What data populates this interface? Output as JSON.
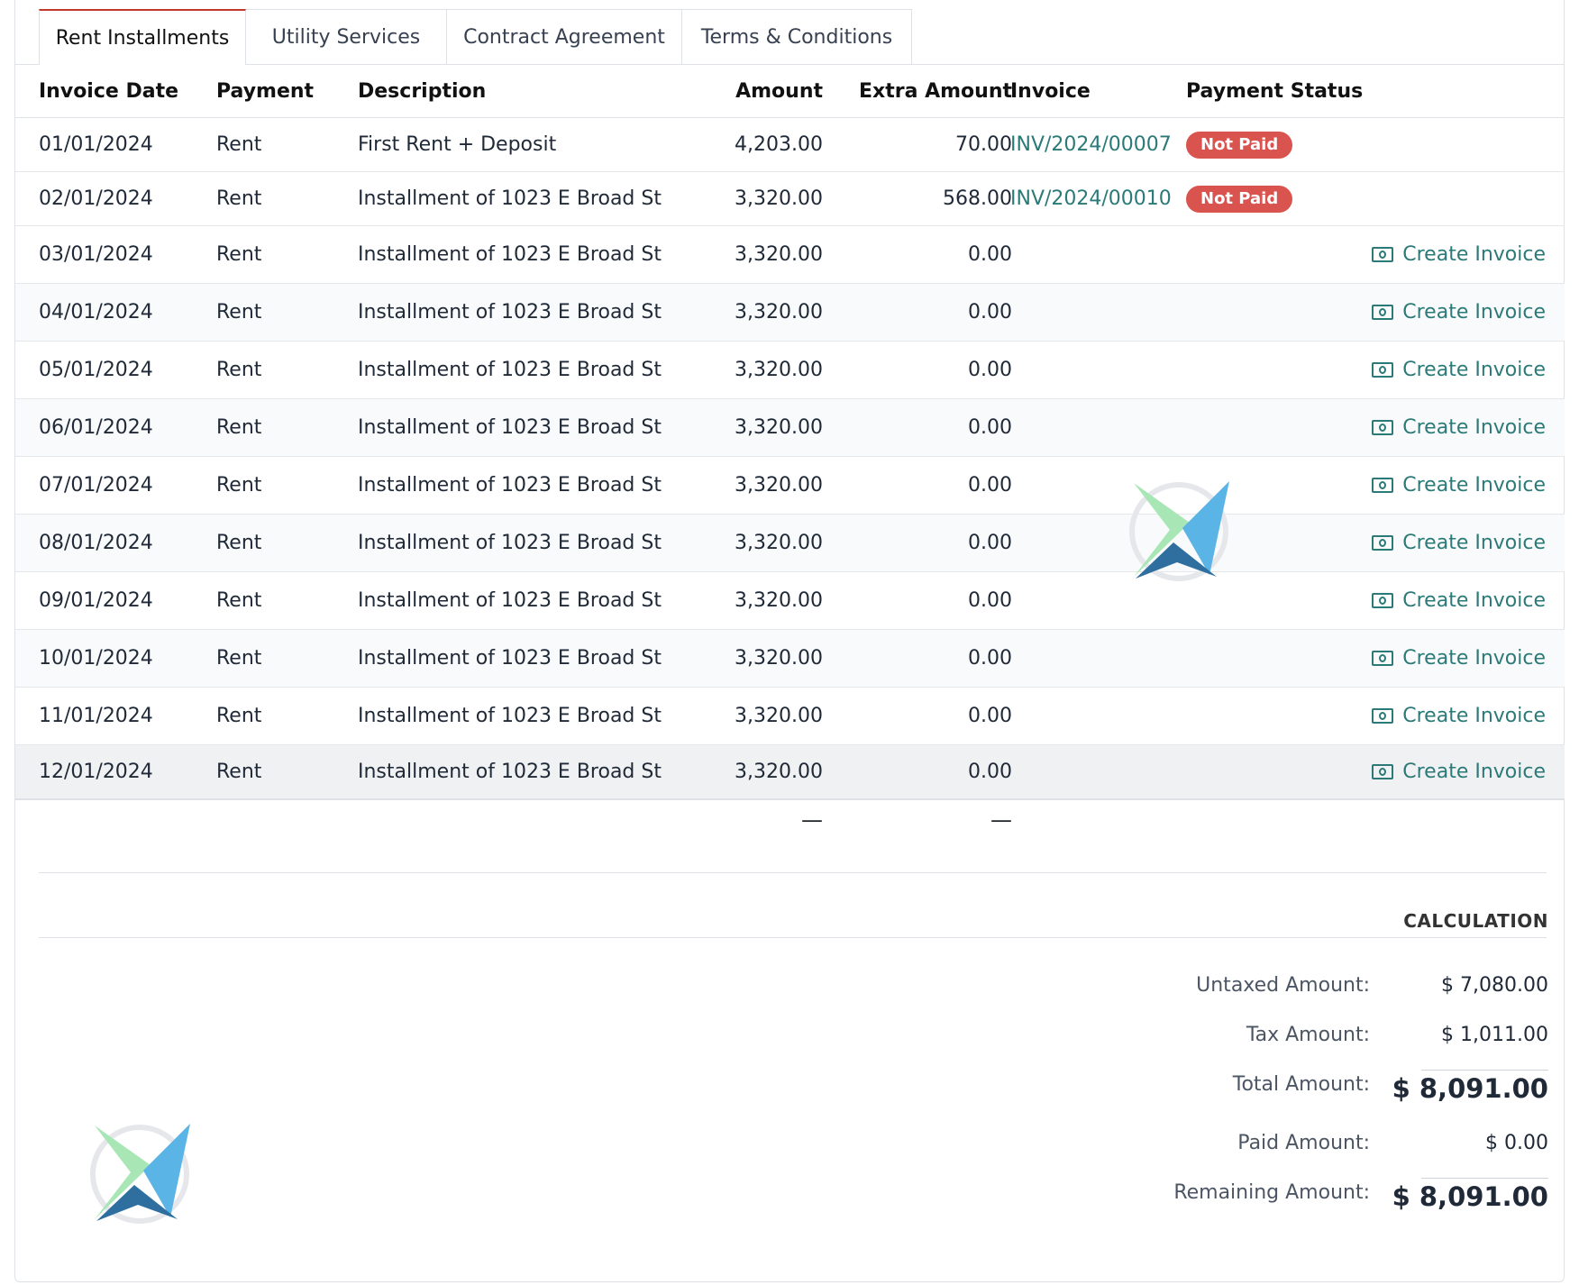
{
  "tabs": [
    {
      "label": "Rent Installments",
      "active": true
    },
    {
      "label": "Utility Services",
      "active": false
    },
    {
      "label": "Contract Agreement",
      "active": false
    },
    {
      "label": "Terms & Conditions",
      "active": false
    }
  ],
  "table": {
    "headers": {
      "invoice_date": "Invoice Date",
      "payment": "Payment",
      "description": "Description",
      "amount": "Amount",
      "extra_amount": "Extra Amount",
      "invoice": "Invoice",
      "payment_status": "Payment Status"
    },
    "rows": [
      {
        "date": "01/01/2024",
        "payment": "Rent",
        "description": "First Rent + Deposit",
        "amount": "4,203.00",
        "extra": "70.00",
        "invoice": "INV/2024/00007",
        "status": "Not Paid",
        "action": ""
      },
      {
        "date": "02/01/2024",
        "payment": "Rent",
        "description": "Installment of 1023 E Broad St",
        "amount": "3,320.00",
        "extra": "568.00",
        "invoice": "INV/2024/00010",
        "status": "Not Paid",
        "action": ""
      },
      {
        "date": "03/01/2024",
        "payment": "Rent",
        "description": "Installment of 1023 E Broad St",
        "amount": "3,320.00",
        "extra": "0.00",
        "invoice": "",
        "status": "",
        "action": "Create Invoice"
      },
      {
        "date": "04/01/2024",
        "payment": "Rent",
        "description": "Installment of 1023 E Broad St",
        "amount": "3,320.00",
        "extra": "0.00",
        "invoice": "",
        "status": "",
        "action": "Create Invoice"
      },
      {
        "date": "05/01/2024",
        "payment": "Rent",
        "description": "Installment of 1023 E Broad St",
        "amount": "3,320.00",
        "extra": "0.00",
        "invoice": "",
        "status": "",
        "action": "Create Invoice"
      },
      {
        "date": "06/01/2024",
        "payment": "Rent",
        "description": "Installment of 1023 E Broad St",
        "amount": "3,320.00",
        "extra": "0.00",
        "invoice": "",
        "status": "",
        "action": "Create Invoice"
      },
      {
        "date": "07/01/2024",
        "payment": "Rent",
        "description": "Installment of 1023 E Broad St",
        "amount": "3,320.00",
        "extra": "0.00",
        "invoice": "",
        "status": "",
        "action": "Create Invoice"
      },
      {
        "date": "08/01/2024",
        "payment": "Rent",
        "description": "Installment of 1023 E Broad St",
        "amount": "3,320.00",
        "extra": "0.00",
        "invoice": "",
        "status": "",
        "action": "Create Invoice"
      },
      {
        "date": "09/01/2024",
        "payment": "Rent",
        "description": "Installment of 1023 E Broad St",
        "amount": "3,320.00",
        "extra": "0.00",
        "invoice": "",
        "status": "",
        "action": "Create Invoice"
      },
      {
        "date": "10/01/2024",
        "payment": "Rent",
        "description": "Installment of 1023 E Broad St",
        "amount": "3,320.00",
        "extra": "0.00",
        "invoice": "",
        "status": "",
        "action": "Create Invoice"
      },
      {
        "date": "11/01/2024",
        "payment": "Rent",
        "description": "Installment of 1023 E Broad St",
        "amount": "3,320.00",
        "extra": "0.00",
        "invoice": "",
        "status": "",
        "action": "Create Invoice"
      },
      {
        "date": "12/01/2024",
        "payment": "Rent",
        "description": "Installment of 1023 E Broad St",
        "amount": "3,320.00",
        "extra": "0.00",
        "invoice": "",
        "status": "",
        "action": "Create Invoice"
      }
    ],
    "summary": {
      "amount": "—",
      "extra": "—"
    }
  },
  "calculation": {
    "title": "CALCULATION",
    "untaxed_label": "Untaxed Amount:",
    "untaxed_value": "$ 7,080.00",
    "tax_label": "Tax Amount:",
    "tax_value": "$ 1,011.00",
    "total_label": "Total Amount:",
    "total_value": "$ 8,091.00",
    "paid_label": "Paid Amount:",
    "paid_value": "$ 0.00",
    "remaining_label": "Remaining Amount:",
    "remaining_value": "$ 8,091.00"
  },
  "colors": {
    "accent_teal": "#2b7a78",
    "badge_red": "#d9534f",
    "active_tab_top": "#c0392b",
    "logo_green": "#9be3a8",
    "logo_blue": "#5ab4e5",
    "logo_dark_blue": "#2f6f9f"
  },
  "icons": {
    "create_invoice": "cash-icon",
    "watermark": "company-logo"
  }
}
